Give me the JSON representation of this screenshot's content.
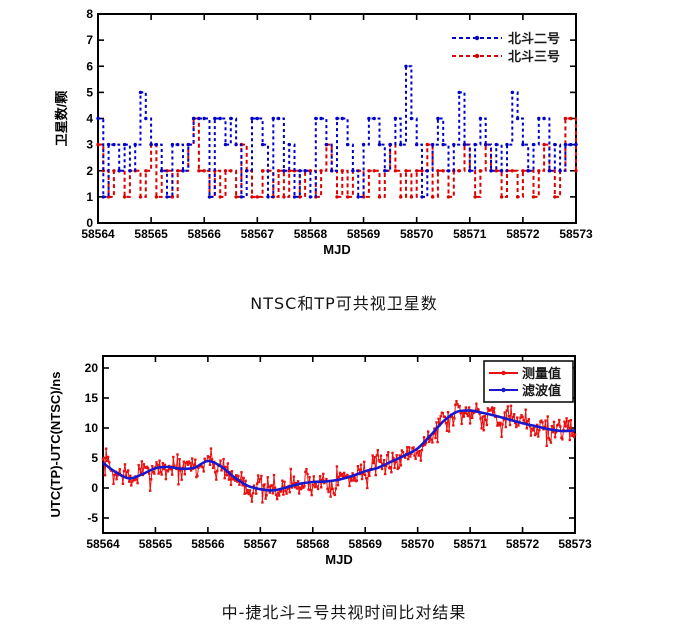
{
  "captions": {
    "top": "NTSC和TP可共视卫星数",
    "bottom": "中-捷北斗三号共视时间比对结果"
  },
  "colors": {
    "beidou2_blue": "#0000cc",
    "beidou3_red": "#dd0000",
    "measured_red": "#e81010",
    "filtered_blue": "#1818cc",
    "axis_black": "#000000",
    "background": "#ffffff"
  },
  "chart_data": [
    {
      "type": "line",
      "subtype": "step-dashed-with-markers",
      "title": "",
      "xlabel": "MJD",
      "ylabel": "卫星数/颗",
      "xlim": [
        58564,
        58573
      ],
      "ylim": [
        0,
        8
      ],
      "xticks": [
        58564,
        58565,
        58566,
        58567,
        58568,
        58569,
        58570,
        58571,
        58572,
        58573
      ],
      "yticks": [
        0,
        1,
        2,
        3,
        4,
        5,
        6,
        7,
        8
      ],
      "grid": false,
      "legend_position": "top-right-inside-no-box",
      "x_start": 58564,
      "x_step": 0.1,
      "series": [
        {
          "name": "北斗二号",
          "color": "#0000cc",
          "style": "dashed-dot-markers",
          "values": [
            4,
            1,
            3,
            3,
            2,
            3,
            2,
            3,
            5,
            4,
            3,
            3,
            2,
            1,
            3,
            3,
            2,
            3,
            4,
            4,
            4,
            1,
            4,
            4,
            3,
            4,
            3,
            1,
            2,
            4,
            4,
            3,
            1,
            4,
            4,
            2,
            3,
            1,
            2,
            2,
            1,
            4,
            4,
            3,
            2,
            4,
            4,
            3,
            2,
            1,
            3,
            4,
            4,
            3,
            2,
            3,
            4,
            3,
            6,
            4,
            3,
            1,
            2,
            3,
            4,
            3,
            2,
            3,
            5,
            3,
            2,
            3,
            4,
            3,
            2,
            3,
            2,
            3,
            5,
            4,
            3,
            2,
            3,
            4,
            4,
            2,
            3,
            2,
            3,
            3,
            3
          ]
        },
        {
          "name": "北斗三号",
          "color": "#dd0000",
          "style": "dashed-dot-markers",
          "values": [
            3,
            2,
            1,
            2,
            2,
            1,
            2,
            2,
            1,
            2,
            3,
            1,
            2,
            2,
            1,
            2,
            2,
            3,
            4,
            2,
            2,
            1,
            2,
            1,
            2,
            2,
            1,
            3,
            2,
            1,
            1,
            2,
            2,
            1,
            2,
            1,
            2,
            2,
            1,
            2,
            2,
            1,
            2,
            3,
            2,
            1,
            2,
            1,
            2,
            2,
            1,
            2,
            2,
            1,
            2,
            3,
            2,
            1,
            2,
            1,
            2,
            2,
            3,
            1,
            2,
            2,
            1,
            2,
            2,
            3,
            2,
            1,
            2,
            3,
            2,
            2,
            1,
            2,
            2,
            1,
            2,
            2,
            1,
            2,
            3,
            2,
            1,
            2,
            4,
            4,
            2
          ]
        }
      ]
    },
    {
      "type": "line",
      "subtype": "noisy-measured-plus-smooth-filtered",
      "title": "",
      "xlabel": "MJD",
      "ylabel": "UTC(TP)-UTC(NTSC)/ns",
      "xlim": [
        58564,
        58573
      ],
      "ylim": [
        -7.5,
        22
      ],
      "xticks": [
        58564,
        58565,
        58566,
        58567,
        58568,
        58569,
        58570,
        58571,
        58572,
        58573
      ],
      "yticks": [
        -5,
        0,
        5,
        10,
        15,
        20
      ],
      "grid": false,
      "legend_position": "top-right-inside-box",
      "filtered": {
        "name": "滤波值",
        "color": "#1818cc",
        "x_start": 58564,
        "x_step": 0.25,
        "values": [
          4.2,
          2.6,
          1.6,
          2.3,
          3.3,
          3.5,
          3.2,
          3.4,
          4.5,
          3.6,
          1.8,
          0.4,
          -0.2,
          -0.4,
          0.1,
          0.7,
          1.0,
          1.1,
          1.4,
          2.0,
          2.8,
          3.4,
          4.4,
          5.4,
          6.6,
          8.8,
          11.2,
          12.7,
          12.9,
          12.5,
          12.0,
          11.4,
          10.8,
          10.3,
          9.8,
          9.5,
          9.6
        ]
      },
      "measured": {
        "name": "测量值",
        "color": "#e81010",
        "x_start": 58564,
        "x_step": 0.02,
        "baseline": "filtered",
        "noise_amplitude": 2.2,
        "wobble_amplitude": 0.6,
        "seed": 7
      }
    }
  ]
}
